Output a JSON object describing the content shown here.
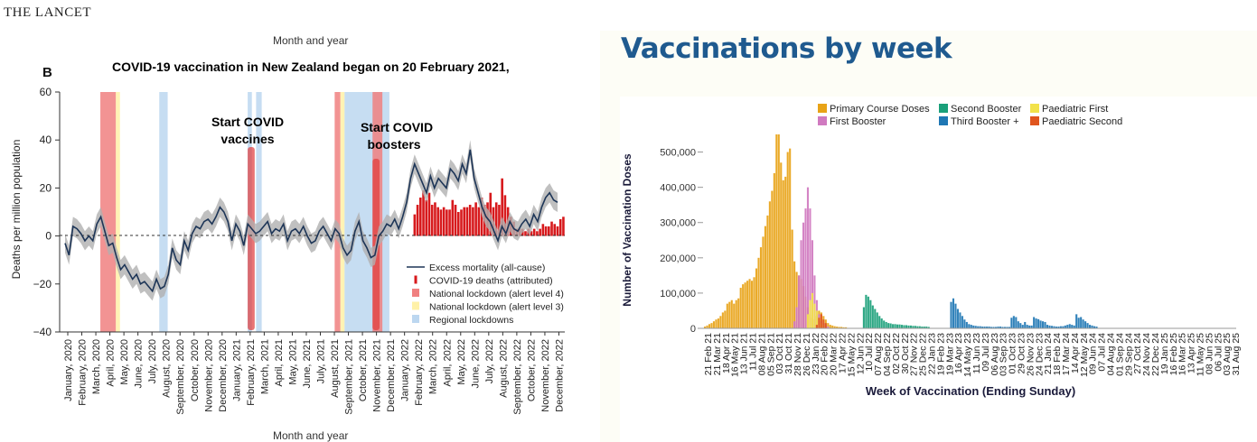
{
  "brand": "THE LANCET",
  "left_chart": {
    "month_label_top": "Month and year",
    "month_label_bottom": "Month and year",
    "panel": "B",
    "title": "COVID-19 vaccination in New Zealand began on 20 February 2021,",
    "ylabel": "Deaths per million population",
    "yticks": [
      "60",
      "40",
      "20",
      "0",
      "−20",
      "−40"
    ],
    "xticks": [
      "January, 2020",
      "February, 2020",
      "March, 2020",
      "April, 2020",
      "May, 2020",
      "June, 2020",
      "July, 2020",
      "August, 2020",
      "September, 2020",
      "October, 2020",
      "November, 2020",
      "December, 2020",
      "January, 2021",
      "February, 2021",
      "March, 2021",
      "April, 2021",
      "May, 2021",
      "June, 2021",
      "July, 2021",
      "August, 2021",
      "September, 2021",
      "October, 2021",
      "November, 2021",
      "December, 2021",
      "January, 2022",
      "February, 2022",
      "March, 2022",
      "April, 2022",
      "May, 2022",
      "June, 2022",
      "July, 2022",
      "August, 2022",
      "September, 2022",
      "October, 2022",
      "November, 2022",
      "December, 2022"
    ],
    "annotations": {
      "vaccines_1": "Start COVID",
      "vaccines_2": "vaccines",
      "boosters_1": "Start COVID",
      "boosters_2": "boosters"
    },
    "legend": [
      "Excess mortality (all-cause)",
      "COVID-19 deaths (attributed)",
      "National lockdown (alert level 4)",
      "National lockdown (alert level 3)",
      "Regional lockdowns"
    ],
    "colors": {
      "line": "#1d3557",
      "band": "#b0b0b0",
      "covid": "#d7191c",
      "l4": "#f08080",
      "l3": "#fff1a8",
      "regional": "#bcd7f0"
    }
  },
  "right_chart": {
    "title": "Vaccinations by week",
    "ylabel": "Number of Vaccination Doses",
    "xlabel": "Week of Vaccination (Ending Sunday)",
    "yticks": [
      "500,000",
      "400,000",
      "300,000",
      "200,000",
      "100,000",
      "0"
    ],
    "xticks": [
      "21 Feb 21",
      "21 Mar 21",
      "18 Apr 21",
      "16 May 21",
      "13 Jun 21",
      "11 Jul 21",
      "08 Aug 21",
      "05 Sep 21",
      "03 Oct 21",
      "31 Oct 21",
      "28 Nov 21",
      "26 Dec 21",
      "23 Jan 22",
      "20 Feb 22",
      "20 Mar 22",
      "17 Apr 22",
      "15 May 22",
      "12 Jun 22",
      "10 Jul 22",
      "07 Aug 22",
      "04 Sep 22",
      "02 Oct 22",
      "30 Oct 22",
      "27 Nov 22",
      "25 Dec 22",
      "22 Jan 23",
      "19 Feb 23",
      "19 Mar 23",
      "16 Apr 23",
      "14 May 23",
      "11 Jun 23",
      "09 Jul 23",
      "06 Aug 23",
      "03 Sep 23",
      "01 Oct 23",
      "29 Oct 23",
      "26 Nov 23",
      "24 Dec 23",
      "21 Jan 24",
      "18 Feb 24",
      "17 Mar 24",
      "14 Apr 24",
      "12 May 24",
      "09 Jun 24",
      "07 Jul 24",
      "04 Aug 24",
      "01 Sep 24",
      "29 Sep 24",
      "27 Oct 24",
      "24 Nov 24",
      "22 Dec 24",
      "19 Jan 25",
      "16 Feb 25",
      "16 Mar 25",
      "13 Apr 25",
      "11 May 25",
      "08 Jun 25",
      "06 Jul 25",
      "03 Aug 25",
      "31 Aug 25"
    ],
    "legend": [
      {
        "label": "Primary Course Doses",
        "color": "#e8a317"
      },
      {
        "label": "Second Booster",
        "color": "#1aa07a"
      },
      {
        "label": "Paediatric First",
        "color": "#f2e24a"
      },
      {
        "label": "First Booster",
        "color": "#d07ac0"
      },
      {
        "label": "Third Booster +",
        "color": "#1f77b4"
      },
      {
        "label": "Paediatric Second",
        "color": "#e0551e"
      }
    ]
  },
  "chart_data": [
    {
      "type": "line",
      "title": "COVID-19 vaccination in New Zealand began on 20 February 2021,",
      "xlabel": "Month and year",
      "ylabel": "Deaths per million population",
      "ylim": [
        -40,
        60
      ],
      "x_range": [
        "January, 2020",
        "December, 2022"
      ],
      "series": [
        {
          "name": "Excess mortality (all-cause)",
          "values": [
            -3,
            -8,
            4,
            3,
            1,
            -2,
            0,
            -2,
            5,
            8,
            2,
            -4,
            -3,
            -9,
            -14,
            -12,
            -15,
            -18,
            -16,
            -20,
            -19,
            -21,
            -23,
            -18,
            -22,
            -21,
            -16,
            -5,
            -10,
            -12,
            -2,
            -6,
            1,
            4,
            3,
            6,
            7,
            5,
            8,
            12,
            10,
            6,
            -2,
            5,
            2,
            -4,
            5,
            3,
            1,
            2,
            4,
            6,
            1,
            3,
            2,
            5,
            -2,
            2,
            3,
            1,
            4,
            0,
            -3,
            -2,
            2,
            4,
            1,
            -2,
            3,
            1,
            -5,
            -8,
            -6,
            2,
            6,
            -2,
            -5,
            -9,
            -8,
            0,
            2,
            5,
            4,
            7,
            3,
            8,
            14,
            24,
            30,
            26,
            22,
            18,
            25,
            20,
            24,
            22,
            20,
            28,
            26,
            23,
            30,
            26,
            36,
            24,
            18,
            12,
            8,
            6,
            2,
            -2,
            4,
            1,
            6,
            3,
            2,
            5,
            7,
            4,
            9,
            6,
            12,
            16,
            18,
            15,
            14
          ]
        },
        {
          "name": "COVID-19 deaths (attributed)",
          "values": [
            9,
            13,
            16,
            19,
            15,
            18,
            13,
            14,
            12,
            11,
            12,
            11,
            11,
            15,
            13,
            10,
            11,
            12,
            12,
            13,
            12,
            14,
            12,
            16,
            13,
            14,
            18,
            12,
            14,
            13,
            24,
            17,
            12,
            8,
            6,
            3,
            3,
            3,
            2,
            3,
            2,
            3,
            2,
            3,
            5,
            4,
            4,
            6,
            5,
            4,
            7,
            8
          ]
        }
      ],
      "shaded_periods": {
        "National lockdown (alert level 4)": [
          [
            "Mar 2020",
            "Apr 2020"
          ],
          [
            "Aug 2021",
            "Aug 2021"
          ],
          [
            "Oct 2021",
            "Nov 2021"
          ]
        ],
        "National lockdown (alert level 3)": [
          [
            "Apr 2020",
            "May 2020"
          ],
          [
            "Aug 2021",
            "Sep 2021"
          ]
        ],
        "Regional lockdowns": [
          [
            "Aug 2020",
            "Sep 2020"
          ],
          [
            "Feb 2021",
            "Mar 2021"
          ],
          [
            "Sep 2021",
            "Dec 2021"
          ]
        ]
      }
    },
    {
      "type": "bar",
      "title": "Vaccinations by week",
      "xlabel": "Week of Vaccination (Ending Sunday)",
      "ylabel": "Number of Vaccination Doses",
      "ylim": [
        0,
        560000
      ],
      "x_range": [
        "21 Feb 21",
        "31 Aug 25"
      ],
      "series": [
        {
          "name": "Primary Course Doses",
          "values": [
            5000,
            8000,
            12000,
            15000,
            20000,
            25000,
            28000,
            35000,
            45000,
            50000,
            70000,
            75000,
            80000,
            70000,
            80000,
            85000,
            115000,
            125000,
            130000,
            135000,
            140000,
            135000,
            145000,
            170000,
            200000,
            230000,
            260000,
            290000,
            320000,
            360000,
            390000,
            440000,
            550000,
            550000,
            470000,
            420000,
            430000,
            500000,
            510000,
            280000,
            190000,
            160000,
            150000,
            140000,
            120000,
            90000,
            60000,
            40000,
            30000,
            25000,
            35000,
            50000,
            45000,
            35000,
            25000,
            15000,
            10000,
            8000,
            6000,
            5000,
            4000,
            4000,
            3000,
            3000
          ]
        },
        {
          "name": "First Booster",
          "values": [
            20000,
            60000,
            150000,
            250000,
            300000,
            340000,
            400000,
            340000,
            250000,
            150000,
            80000,
            40000,
            20000,
            15000,
            10000,
            5000
          ]
        },
        {
          "name": "Paediatric First",
          "values": [
            40000,
            80000,
            100000,
            70000,
            50000,
            30000,
            15000,
            10000
          ]
        },
        {
          "name": "Paediatric Second",
          "values": [
            10000,
            30000,
            40000,
            25000,
            15000
          ]
        },
        {
          "name": "Second Booster",
          "values": [
            60000,
            95000,
            90000,
            80000,
            65000,
            55000,
            45000,
            35000,
            28000,
            22000,
            18000,
            15000,
            14000,
            12000,
            12000,
            11000,
            11000,
            10000,
            9000,
            9000,
            8000,
            8000,
            7000,
            7000,
            6000,
            6000,
            5000,
            5000,
            5000,
            4000
          ]
        },
        {
          "name": "Third Booster +",
          "values": [
            75000,
            85000,
            70000,
            55000,
            45000,
            35000,
            25000,
            18000,
            12000,
            10000,
            8000,
            7000,
            6000,
            6000,
            5000,
            5000,
            5000,
            5000,
            4000,
            4000,
            4000,
            5000,
            5000,
            4000,
            4000,
            4000,
            4000,
            30000,
            35000,
            32000,
            20000,
            15000,
            10000,
            18000,
            10000,
            8000,
            8000,
            32000,
            28000,
            26000,
            22000,
            20000,
            18000,
            10000,
            8000,
            7000,
            6000,
            5000,
            5000,
            6000,
            6000,
            8000,
            10000,
            12000,
            10000,
            8000,
            40000,
            30000,
            32000,
            25000,
            20000,
            15000,
            10000,
            8000,
            6000,
            5000
          ]
        }
      ]
    }
  ]
}
